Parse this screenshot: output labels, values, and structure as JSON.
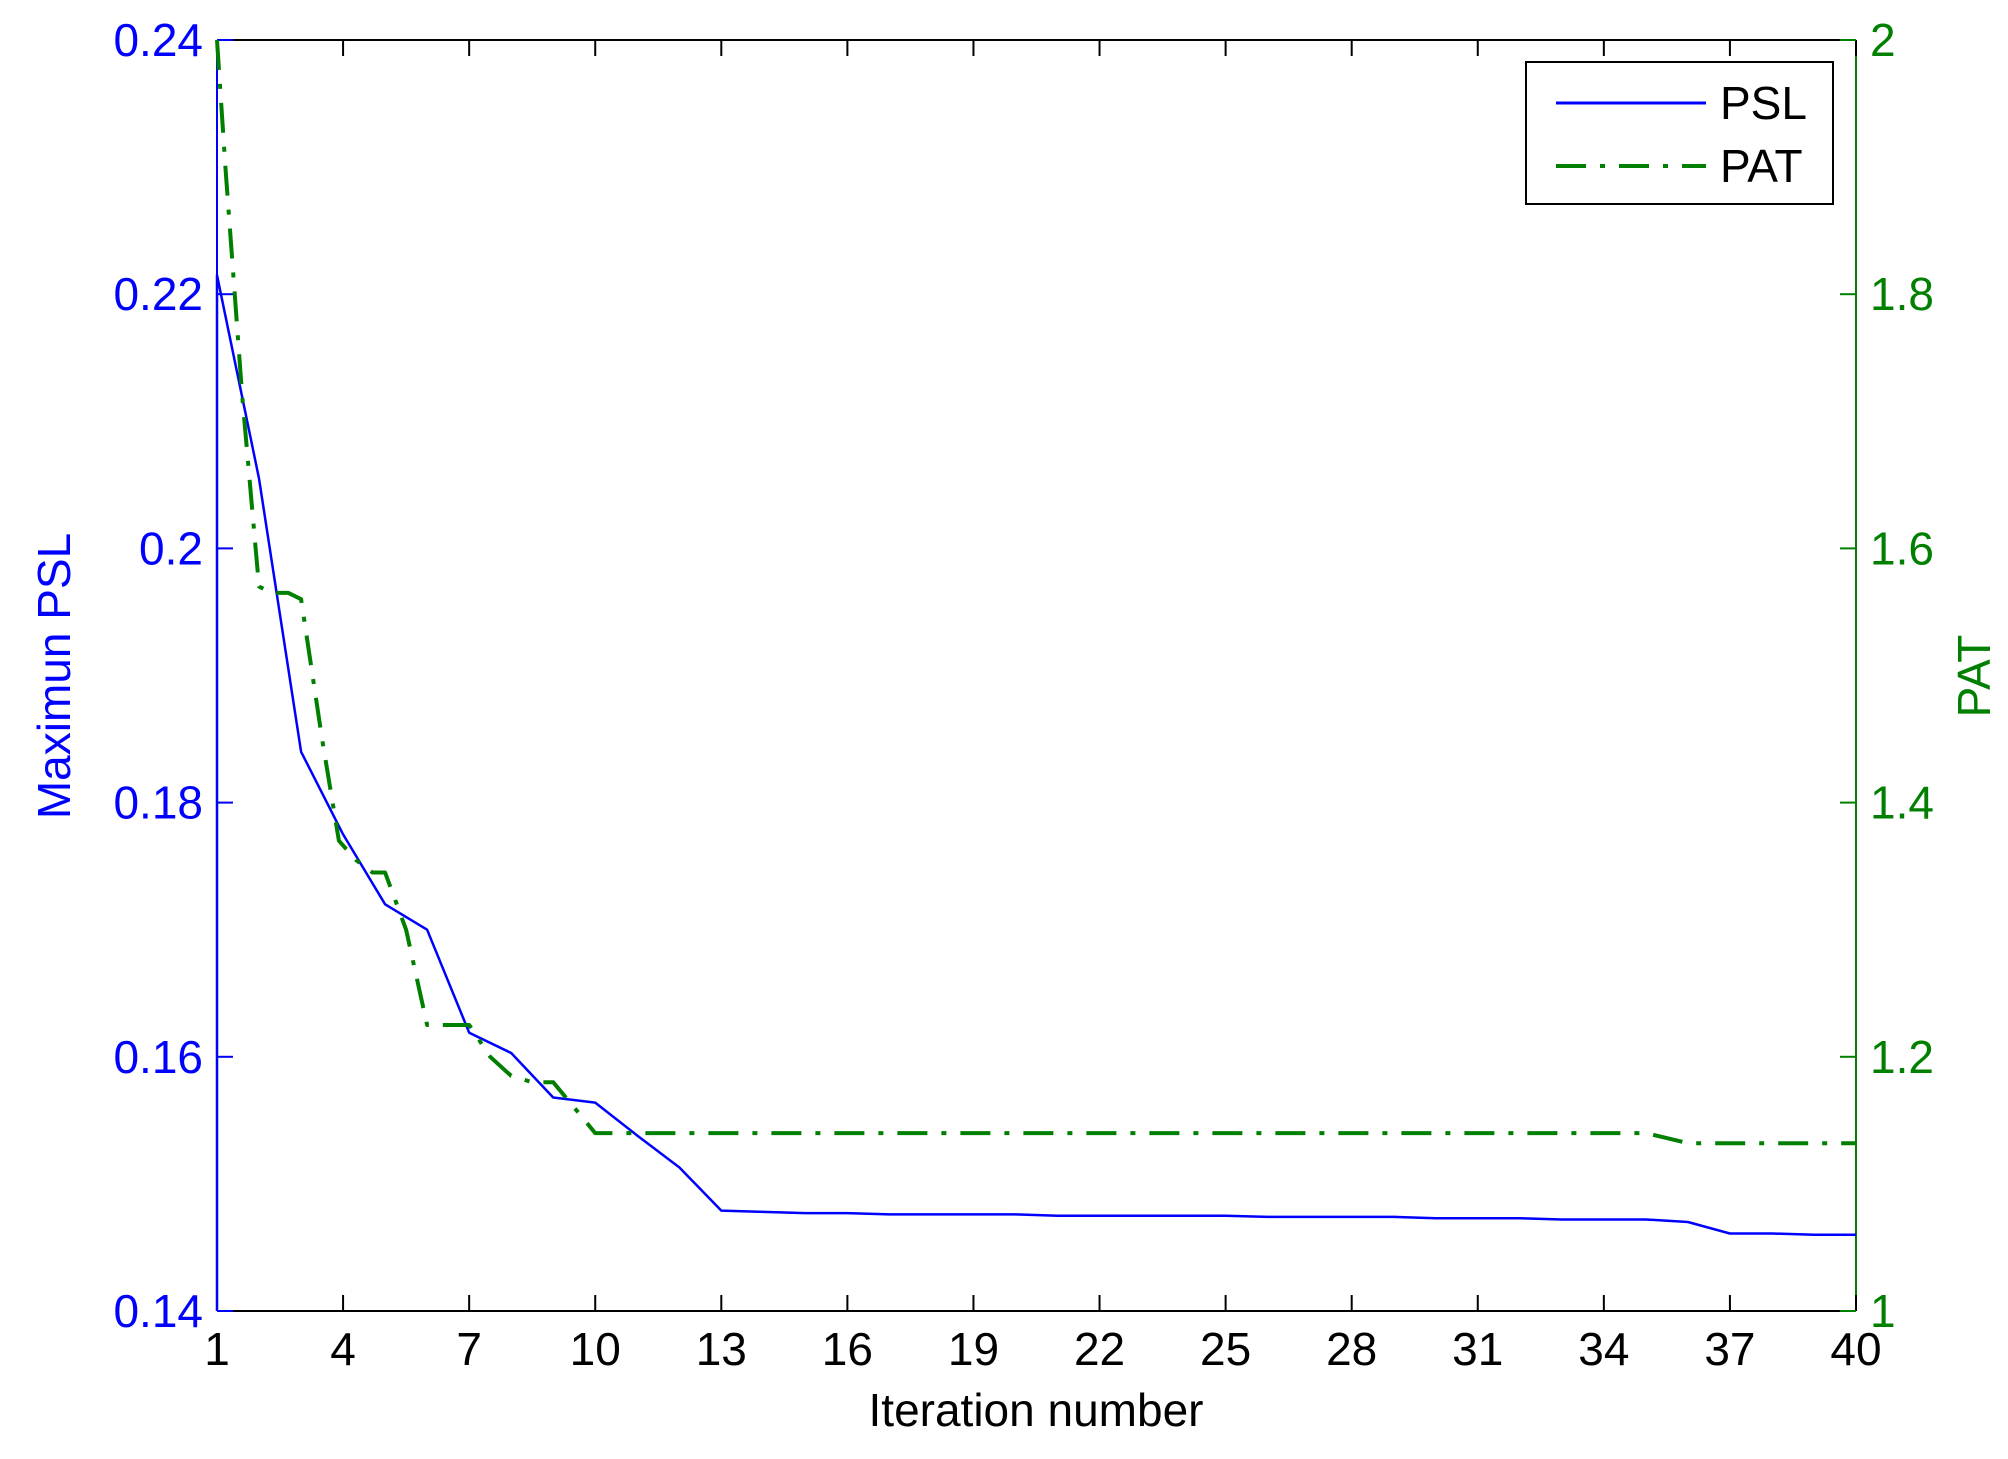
{
  "chart_data": {
    "type": "line",
    "xlabel": "Iteration number",
    "ylabel_left": "Maximun PSL",
    "ylabel_right": "PAT",
    "xlim": [
      1,
      40
    ],
    "ylim_left": [
      0.14,
      0.24
    ],
    "ylim_right": [
      1,
      2
    ],
    "xticks": [
      1,
      4,
      7,
      10,
      13,
      16,
      19,
      22,
      25,
      28,
      31,
      34,
      37,
      40
    ],
    "yticks_left": [
      "0.14",
      "0.16",
      "0.18",
      "0.2",
      "0.22",
      "0.24"
    ],
    "yticks_right": [
      "1",
      "1.2",
      "1.4",
      "1.6",
      "1.8",
      "2"
    ],
    "grid": false,
    "legend_position": "top-right",
    "series": [
      {
        "name": "PSL",
        "axis": "left",
        "color": "#0000ff",
        "style": "solid",
        "x": [
          1,
          1,
          2,
          3,
          4,
          5,
          6,
          7,
          8,
          9,
          10,
          11,
          12,
          13,
          14,
          15,
          16,
          17,
          18,
          19,
          20,
          21,
          22,
          23,
          24,
          25,
          26,
          27,
          28,
          29,
          30,
          31,
          32,
          33,
          34,
          35,
          36,
          37,
          38,
          39,
          40
        ],
        "y": [
          0.14,
          0.2215,
          0.2055,
          0.184,
          0.1775,
          0.172,
          0.17,
          0.1619,
          0.1603,
          0.1568,
          0.1564,
          0.1538,
          0.1513,
          0.1479,
          0.1478,
          0.1477,
          0.1477,
          0.1476,
          0.1476,
          0.1476,
          0.1476,
          0.1475,
          0.1475,
          0.1475,
          0.1475,
          0.1475,
          0.1474,
          0.1474,
          0.1474,
          0.1474,
          0.1473,
          0.1473,
          0.1473,
          0.1472,
          0.1472,
          0.1472,
          0.147,
          0.1461,
          0.1461,
          0.146,
          0.146
        ]
      },
      {
        "name": "PAT",
        "axis": "right",
        "color": "#007f00",
        "style": "dashdot",
        "x": [
          1,
          1.2,
          1.6,
          2,
          2.3,
          2.7,
          3,
          3.5,
          3.9,
          4.3,
          4.7,
          5,
          5.5,
          6,
          6.5,
          7,
          7.5,
          8,
          8.5,
          9,
          9.5,
          10,
          11,
          13,
          16,
          20,
          25,
          30,
          34,
          35,
          36,
          37,
          40
        ],
        "y": [
          2.0,
          1.9,
          1.72,
          1.57,
          1.565,
          1.565,
          1.56,
          1.45,
          1.37,
          1.355,
          1.345,
          1.345,
          1.3,
          1.225,
          1.225,
          1.225,
          1.2,
          1.185,
          1.18,
          1.18,
          1.16,
          1.14,
          1.14,
          1.14,
          1.14,
          1.14,
          1.14,
          1.14,
          1.14,
          1.14,
          1.132,
          1.132,
          1.132
        ]
      }
    ]
  }
}
